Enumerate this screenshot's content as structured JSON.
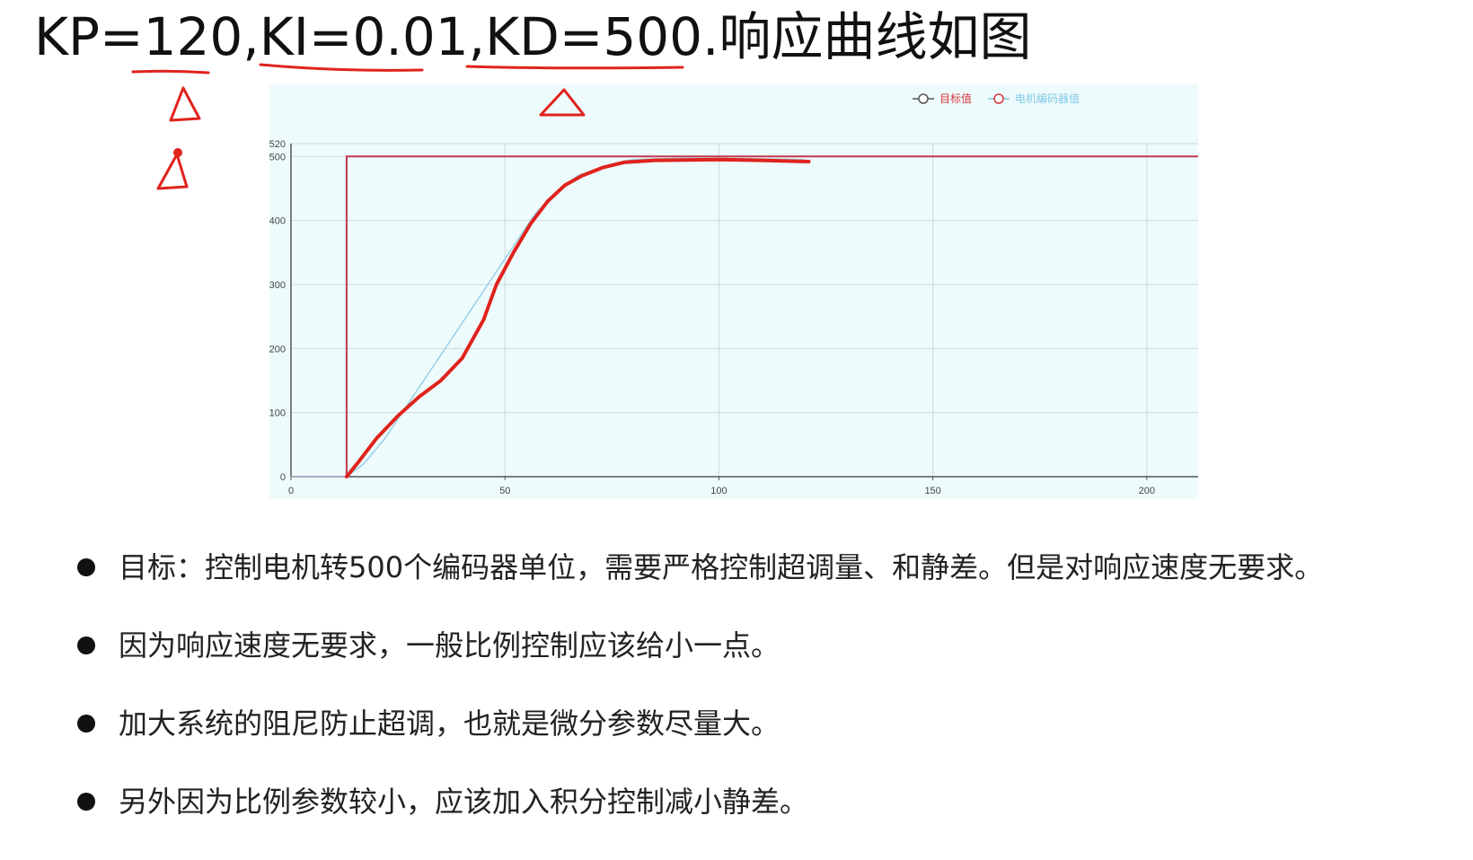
{
  "title": "KP=120,KI=0.01,KD=500.响应曲线如图",
  "chart_data": {
    "type": "line",
    "background": "#eefbfc",
    "xlim": [
      0,
      212
    ],
    "ylim": [
      0,
      520
    ],
    "x_ticks": [
      0,
      50,
      100,
      150,
      200
    ],
    "y_ticks": [
      0,
      100,
      200,
      300,
      400,
      500,
      520
    ],
    "grid": true,
    "legend_position": "top-right",
    "series": [
      {
        "name": "目标值",
        "legend_color": "#d4353e",
        "color": "#c0394f",
        "points": [
          [
            0,
            0
          ],
          [
            13,
            0
          ],
          [
            13,
            500
          ],
          [
            212,
            500
          ]
        ]
      },
      {
        "name": "电机编码器值",
        "legend_color": "#7fc8e6",
        "color": "#9fd3e6",
        "points": [
          [
            0,
            0
          ],
          [
            13,
            0
          ],
          [
            17,
            20
          ],
          [
            22,
            60
          ],
          [
            27,
            110
          ],
          [
            32,
            160
          ],
          [
            37,
            210
          ],
          [
            42,
            260
          ],
          [
            47,
            310
          ],
          [
            52,
            360
          ],
          [
            57,
            410
          ],
          [
            62,
            445
          ],
          [
            67,
            470
          ],
          [
            72,
            482
          ],
          [
            76,
            490
          ],
          [
            80,
            495
          ],
          [
            90,
            497
          ],
          [
            100,
            497
          ],
          [
            110,
            496
          ],
          [
            120,
            495
          ]
        ]
      }
    ]
  },
  "bullets": [
    "目标：控制电机转500个编码器单位，需要严格控制超调量、和静差。但是对响应速度无要求。",
    "因为响应速度无要求，一般比例控制应该给小一点。",
    "加大系统的阻尼防止超调，也就是微分参数尽量大。",
    "另外因为比例参数较小，应该加入积分控制减小静差。"
  ],
  "colors": {
    "annotation_red": "#e0231d",
    "axis": "#555555",
    "grid": "#cfd8da"
  }
}
